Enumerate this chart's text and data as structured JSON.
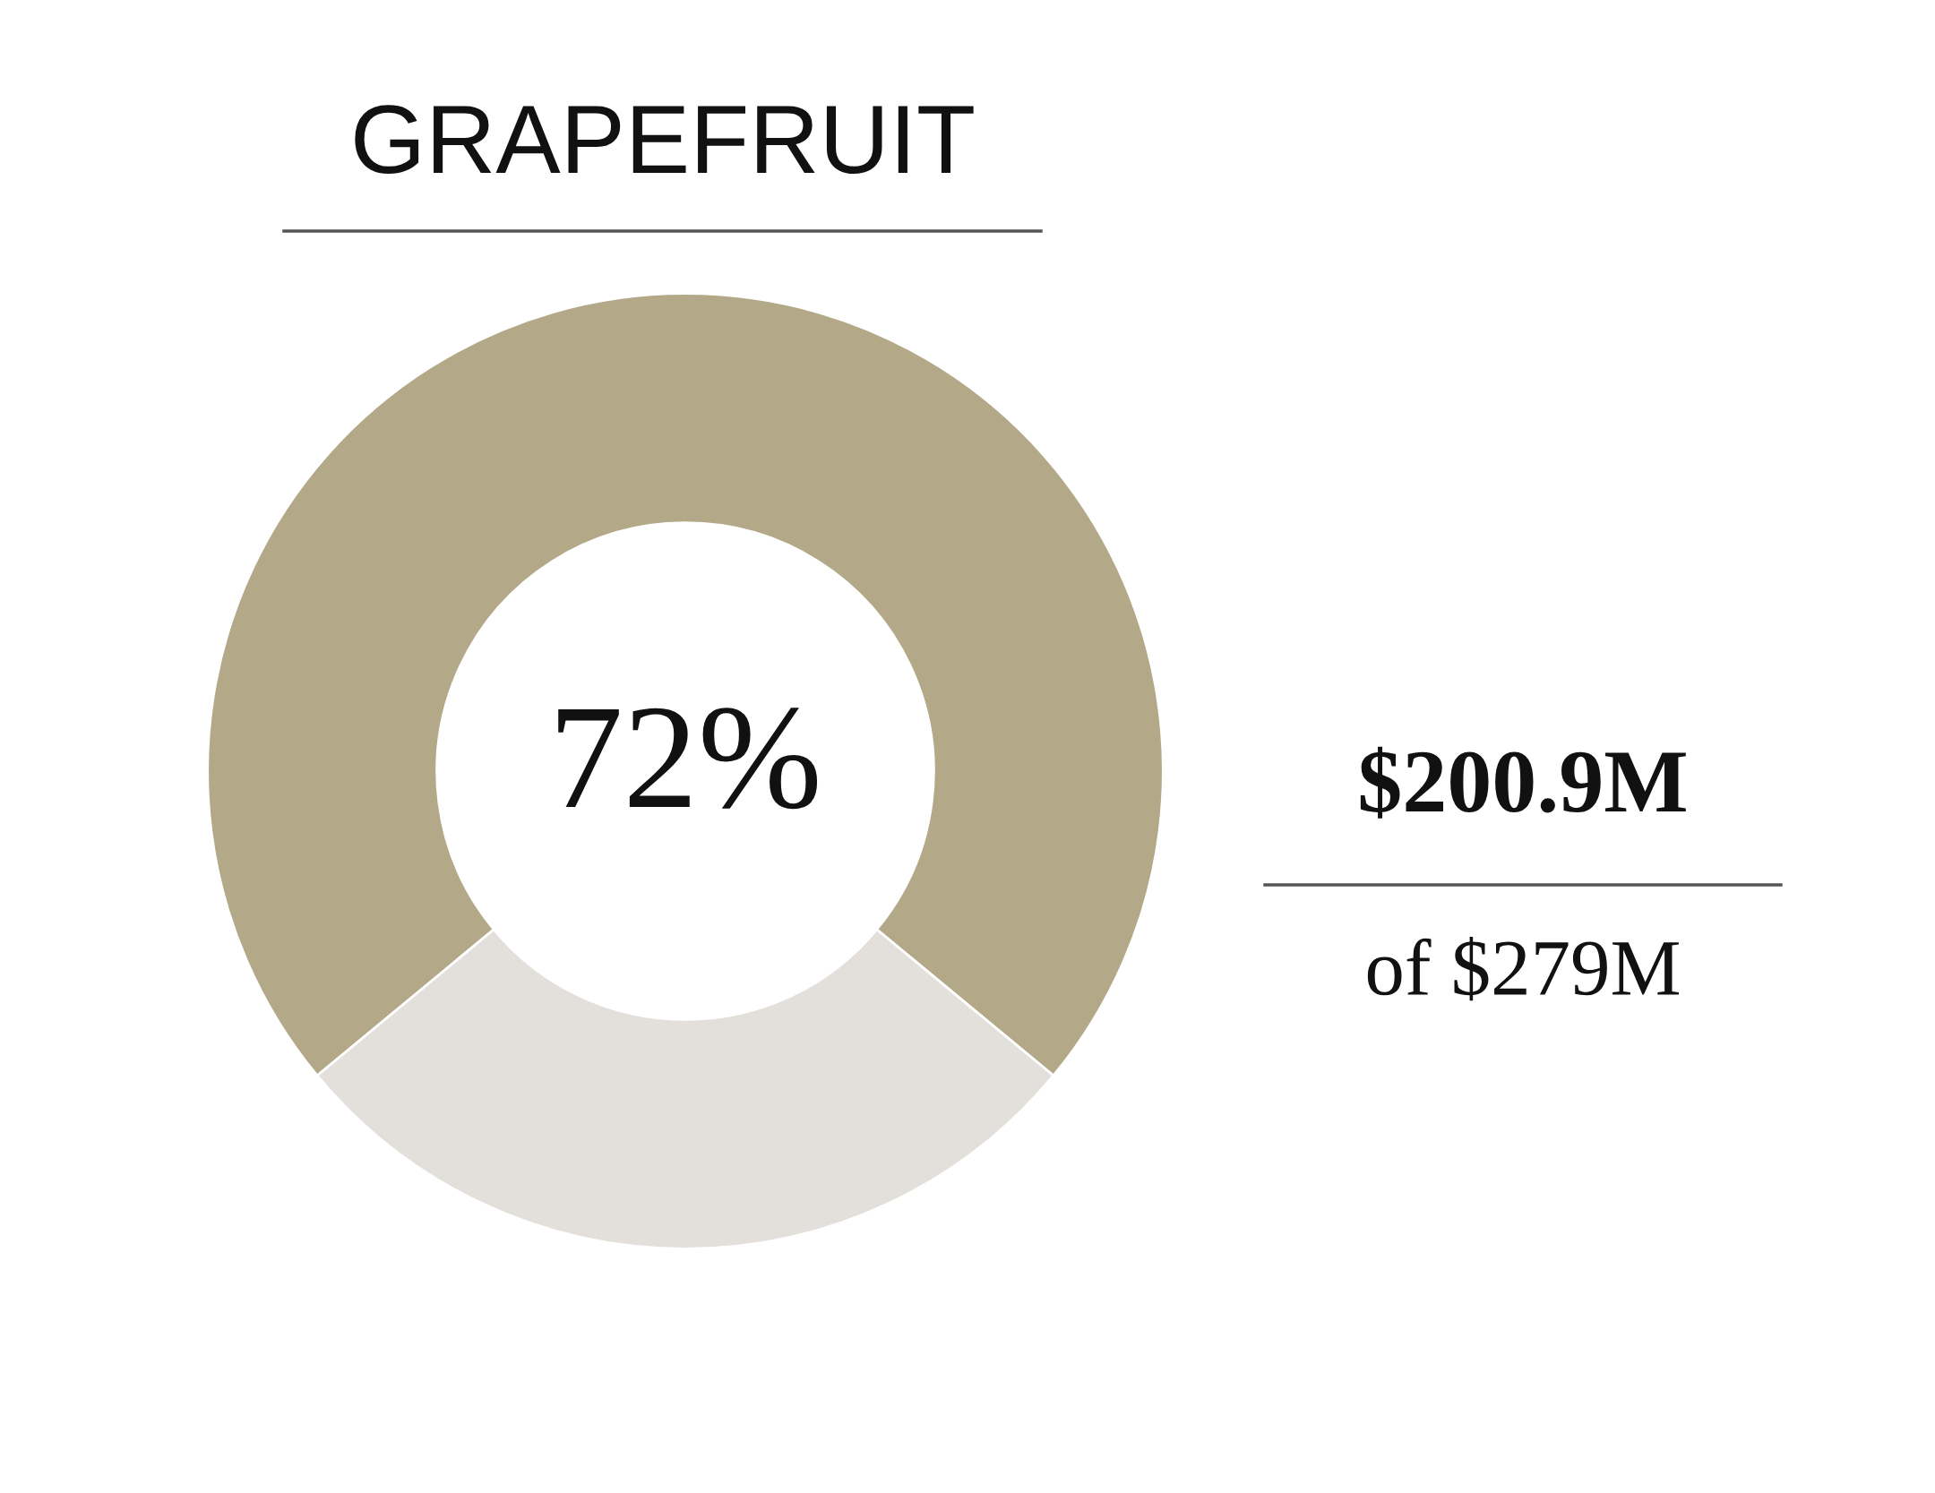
{
  "chart_data": {
    "type": "donut",
    "title": "GRAPEFRUIT",
    "categories": [
      null,
      null
    ],
    "values": [
      72,
      28
    ],
    "colors": [
      "#b3a888",
      "#e3e0db"
    ],
    "value_labels": [
      "72%",
      null
    ],
    "annotations": [
      "$200.9M",
      "of $279M"
    ],
    "legend": false
  }
}
